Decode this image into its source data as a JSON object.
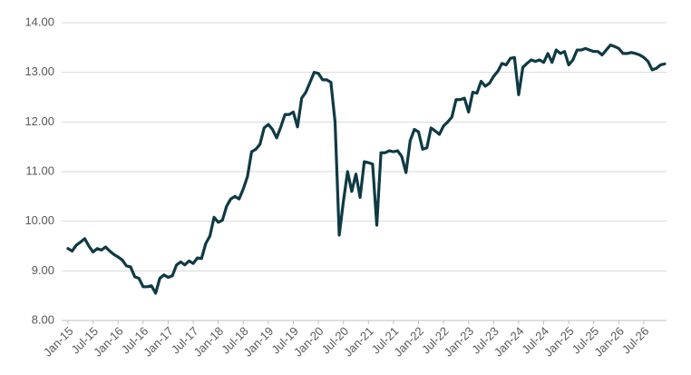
{
  "chart_data": {
    "type": "line",
    "categories": [
      "Jan-15",
      null,
      null,
      null,
      null,
      null,
      "Jul-15",
      null,
      null,
      null,
      null,
      null,
      "Jan-16",
      null,
      null,
      null,
      null,
      null,
      "Jul-16",
      null,
      null,
      null,
      null,
      null,
      "Jan-17",
      null,
      null,
      null,
      null,
      null,
      "Jul-17",
      null,
      null,
      null,
      null,
      null,
      "Jan-18",
      null,
      null,
      null,
      null,
      null,
      "Jul-18",
      null,
      null,
      null,
      null,
      null,
      "Jan-19",
      null,
      null,
      null,
      null,
      null,
      "Jul-19",
      null,
      null,
      null,
      null,
      null,
      "Jan-20",
      null,
      null,
      null,
      null,
      null,
      "Jul-20",
      null,
      null,
      null,
      null,
      null,
      "Jan-21",
      null,
      null,
      null,
      null,
      null,
      "Jul-21",
      null,
      null,
      null,
      null,
      null,
      "Jan-22",
      null,
      null,
      null,
      null,
      null,
      "Jul-22",
      null,
      null,
      null,
      null,
      null,
      "Jan-23",
      null,
      null,
      null,
      null,
      null,
      "Jul-23",
      null,
      null,
      null,
      null,
      null,
      "Jan-24",
      null,
      null,
      null,
      null,
      null,
      "Jul-24",
      null,
      null,
      null,
      null,
      null,
      "Jan-25",
      null,
      null,
      null,
      null,
      null,
      "Jul-25",
      null,
      null,
      null,
      null,
      null,
      "Jan-26",
      null,
      null,
      null,
      null,
      null,
      "Jul-26",
      null,
      null,
      null,
      null,
      null
    ],
    "values": [
      9.45,
      9.4,
      9.52,
      9.58,
      9.65,
      9.5,
      9.38,
      9.45,
      9.42,
      9.48,
      9.4,
      9.33,
      9.28,
      9.22,
      9.1,
      9.08,
      8.88,
      8.85,
      8.68,
      8.68,
      8.7,
      8.55,
      8.85,
      8.92,
      8.87,
      8.9,
      9.12,
      9.18,
      9.12,
      9.2,
      9.15,
      9.26,
      9.25,
      9.55,
      9.7,
      10.08,
      9.98,
      10.02,
      10.3,
      10.45,
      10.5,
      10.45,
      10.65,
      10.9,
      11.4,
      11.45,
      11.55,
      11.88,
      11.95,
      11.85,
      11.68,
      11.9,
      12.15,
      12.15,
      12.2,
      11.9,
      12.48,
      12.6,
      12.8,
      13.0,
      12.98,
      12.85,
      12.85,
      12.8,
      12.0,
      9.72,
      10.4,
      11.0,
      10.6,
      10.95,
      10.48,
      11.2,
      11.18,
      11.15,
      9.92,
      11.38,
      11.38,
      11.42,
      11.4,
      11.42,
      11.3,
      10.98,
      11.62,
      11.85,
      11.8,
      11.45,
      11.48,
      11.88,
      11.82,
      11.75,
      11.92,
      12.0,
      12.1,
      12.45,
      12.45,
      12.48,
      12.2,
      12.6,
      12.58,
      12.82,
      12.72,
      12.78,
      12.92,
      13.02,
      13.18,
      13.15,
      13.28,
      13.3,
      12.55,
      13.1,
      13.18,
      13.25,
      13.22,
      13.25,
      13.2,
      13.38,
      13.2,
      13.45,
      13.38,
      13.42,
      13.15,
      13.25,
      13.45,
      13.45,
      13.48,
      13.45,
      13.42,
      13.42,
      13.35,
      13.45,
      13.55,
      13.52,
      13.48,
      13.38,
      13.38,
      13.4,
      13.38,
      13.35,
      13.3,
      13.22,
      13.05,
      13.08,
      13.15,
      13.17
    ],
    "color": "#0e3a44",
    "ylim": [
      8,
      14
    ],
    "yticks": [
      {
        "value": 8,
        "label": "8.00"
      },
      {
        "value": 9,
        "label": "9.00"
      },
      {
        "value": 10,
        "label": "10.00"
      },
      {
        "value": 11,
        "label": "11.00"
      },
      {
        "value": 12,
        "label": "12.00"
      },
      {
        "value": 13,
        "label": "13.00"
      },
      {
        "value": 14,
        "label": "14.00"
      }
    ],
    "grid": true
  }
}
